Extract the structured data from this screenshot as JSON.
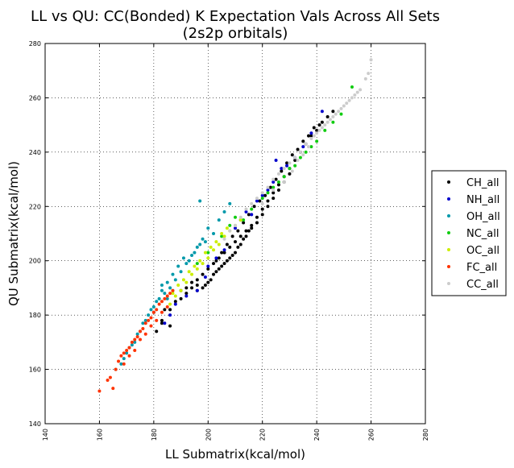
{
  "chart_data": {
    "type": "scatter",
    "title_line1": "LL vs QU: CC(Bonded) K Expectation Vals Across All Sets",
    "title_line2": "(2s2p orbitals)",
    "xlabel": "LL Submatrix(kcal/mol)",
    "ylabel": "QU Submatrix(kcal/mol)",
    "xlim": [
      140,
      280
    ],
    "ylim": [
      140,
      280
    ],
    "xticks": [
      140,
      160,
      180,
      200,
      220,
      240,
      260,
      280
    ],
    "yticks": [
      140,
      160,
      180,
      200,
      220,
      240,
      260,
      280
    ],
    "grid": true,
    "legend_position": "right-outside",
    "series": [
      {
        "name": "CH_all",
        "color": "#000000",
        "points": [
          [
            180,
            181
          ],
          [
            183,
            178
          ],
          [
            186,
            182
          ],
          [
            188,
            185
          ],
          [
            190,
            189
          ],
          [
            192,
            190
          ],
          [
            194,
            192
          ],
          [
            196,
            193
          ],
          [
            198,
            195
          ],
          [
            200,
            197
          ],
          [
            202,
            199
          ],
          [
            204,
            201
          ],
          [
            206,
            203
          ],
          [
            208,
            205
          ],
          [
            210,
            207
          ],
          [
            212,
            209
          ],
          [
            214,
            211
          ],
          [
            216,
            213
          ],
          [
            218,
            216
          ],
          [
            220,
            219
          ],
          [
            222,
            222
          ],
          [
            224,
            225
          ],
          [
            226,
            228
          ],
          [
            228,
            231
          ],
          [
            230,
            234
          ],
          [
            232,
            237
          ],
          [
            234,
            240
          ],
          [
            236,
            243
          ],
          [
            238,
            246
          ],
          [
            240,
            248
          ],
          [
            242,
            251
          ],
          [
            244,
            253
          ],
          [
            246,
            255
          ],
          [
            199,
            191
          ],
          [
            201,
            193
          ],
          [
            203,
            196
          ],
          [
            205,
            198
          ],
          [
            207,
            200
          ],
          [
            209,
            202
          ],
          [
            211,
            205
          ],
          [
            213,
            208
          ],
          [
            215,
            211
          ],
          [
            196,
            189
          ],
          [
            198,
            190
          ],
          [
            200,
            192
          ],
          [
            202,
            195
          ],
          [
            204,
            197
          ],
          [
            206,
            199
          ],
          [
            208,
            201
          ],
          [
            210,
            203
          ],
          [
            212,
            206
          ],
          [
            214,
            209
          ],
          [
            216,
            212
          ],
          [
            218,
            214
          ],
          [
            220,
            217
          ],
          [
            222,
            220
          ],
          [
            224,
            223
          ],
          [
            226,
            226
          ],
          [
            228,
            229
          ],
          [
            230,
            232
          ],
          [
            186,
            176
          ],
          [
            183,
            177
          ],
          [
            181,
            174
          ],
          [
            184,
            182
          ],
          [
            190,
            186
          ],
          [
            192,
            188
          ],
          [
            194,
            190
          ],
          [
            196,
            191
          ],
          [
            203,
            200
          ],
          [
            205,
            203
          ],
          [
            207,
            206
          ],
          [
            209,
            209
          ],
          [
            211,
            211
          ],
          [
            213,
            214
          ],
          [
            215,
            217
          ],
          [
            217,
            220
          ],
          [
            219,
            222
          ],
          [
            221,
            224
          ],
          [
            223,
            227
          ],
          [
            225,
            230
          ],
          [
            227,
            233
          ],
          [
            229,
            236
          ],
          [
            231,
            239
          ],
          [
            233,
            241
          ],
          [
            235,
            244
          ],
          [
            237,
            246
          ],
          [
            239,
            249
          ],
          [
            241,
            250
          ]
        ]
      },
      {
        "name": "NH_all",
        "color": "#0000cc",
        "points": [
          [
            184,
            177
          ],
          [
            186,
            180
          ],
          [
            188,
            184
          ],
          [
            192,
            187
          ],
          [
            196,
            189
          ],
          [
            199,
            194
          ],
          [
            200,
            198
          ],
          [
            203,
            201
          ],
          [
            206,
            204
          ],
          [
            210,
            212
          ],
          [
            212,
            215
          ],
          [
            214,
            218
          ],
          [
            216,
            217
          ],
          [
            218,
            222
          ],
          [
            220,
            224
          ],
          [
            222,
            226
          ],
          [
            224,
            229
          ],
          [
            225,
            237
          ],
          [
            227,
            234
          ],
          [
            229,
            235
          ],
          [
            232,
            238
          ],
          [
            235,
            242
          ],
          [
            238,
            247
          ],
          [
            242,
            255
          ]
        ]
      },
      {
        "name": "OH_all",
        "color": "#0099aa",
        "points": [
          [
            166,
            160
          ],
          [
            168,
            162
          ],
          [
            170,
            166
          ],
          [
            172,
            169
          ],
          [
            174,
            173
          ],
          [
            176,
            177
          ],
          [
            178,
            180
          ],
          [
            180,
            183
          ],
          [
            182,
            186
          ],
          [
            184,
            188
          ],
          [
            186,
            190
          ],
          [
            188,
            193
          ],
          [
            190,
            196
          ],
          [
            192,
            199
          ],
          [
            194,
            202
          ],
          [
            196,
            205
          ],
          [
            198,
            208
          ],
          [
            200,
            212
          ],
          [
            202,
            210
          ],
          [
            204,
            215
          ],
          [
            206,
            218
          ],
          [
            208,
            221
          ],
          [
            177,
            178
          ],
          [
            179,
            182
          ],
          [
            181,
            185
          ],
          [
            183,
            189
          ],
          [
            185,
            192
          ],
          [
            187,
            195
          ],
          [
            189,
            198
          ],
          [
            191,
            201
          ],
          [
            193,
            200
          ],
          [
            195,
            203
          ],
          [
            197,
            206
          ],
          [
            199,
            207
          ],
          [
            175,
            174
          ],
          [
            173,
            170
          ],
          [
            171,
            168
          ],
          [
            169,
            164
          ],
          [
            197,
            222
          ],
          [
            183,
            191
          ],
          [
            185,
            186
          ],
          [
            187,
            189
          ]
        ]
      },
      {
        "name": "NC_all",
        "color": "#11cc11",
        "points": [
          [
            196,
            199
          ],
          [
            200,
            203
          ],
          [
            205,
            209
          ],
          [
            208,
            213
          ],
          [
            210,
            216
          ],
          [
            213,
            215
          ],
          [
            216,
            219
          ],
          [
            220,
            223
          ],
          [
            222,
            225
          ],
          [
            224,
            227
          ],
          [
            226,
            229
          ],
          [
            228,
            231
          ],
          [
            230,
            234
          ],
          [
            232,
            235
          ],
          [
            234,
            238
          ],
          [
            236,
            240
          ],
          [
            238,
            242
          ],
          [
            240,
            244
          ],
          [
            243,
            248
          ],
          [
            246,
            251
          ],
          [
            249,
            254
          ],
          [
            253,
            264
          ]
        ]
      },
      {
        "name": "OC_all",
        "color": "#ccee00",
        "points": [
          [
            186,
            184
          ],
          [
            188,
            187
          ],
          [
            190,
            189
          ],
          [
            192,
            192
          ],
          [
            194,
            195
          ],
          [
            196,
            197
          ],
          [
            198,
            199
          ],
          [
            200,
            201
          ],
          [
            202,
            204
          ],
          [
            204,
            206
          ],
          [
            206,
            209
          ],
          [
            208,
            211
          ],
          [
            210,
            213
          ],
          [
            212,
            215
          ],
          [
            191,
            193
          ],
          [
            193,
            196
          ],
          [
            195,
            198
          ],
          [
            197,
            200
          ],
          [
            199,
            203
          ],
          [
            201,
            205
          ],
          [
            203,
            207
          ],
          [
            205,
            210
          ],
          [
            207,
            212
          ],
          [
            189,
            191
          ],
          [
            187,
            188
          ]
        ]
      },
      {
        "name": "FC_all",
        "color": "#ff3300",
        "points": [
          [
            160,
            152
          ],
          [
            163,
            156
          ],
          [
            164,
            157
          ],
          [
            166,
            160
          ],
          [
            167,
            163
          ],
          [
            168,
            165
          ],
          [
            169,
            166
          ],
          [
            170,
            167
          ],
          [
            171,
            168
          ],
          [
            172,
            170
          ],
          [
            173,
            171
          ],
          [
            174,
            172
          ],
          [
            175,
            174
          ],
          [
            176,
            175
          ],
          [
            177,
            177
          ],
          [
            178,
            178
          ],
          [
            179,
            179
          ],
          [
            180,
            181
          ],
          [
            181,
            182
          ],
          [
            182,
            184
          ],
          [
            183,
            185
          ],
          [
            184,
            186
          ],
          [
            185,
            187
          ],
          [
            186,
            188
          ],
          [
            187,
            189
          ],
          [
            165,
            153
          ],
          [
            169,
            162
          ],
          [
            171,
            165
          ],
          [
            173,
            167
          ],
          [
            175,
            171
          ],
          [
            177,
            173
          ],
          [
            179,
            176
          ],
          [
            181,
            178
          ],
          [
            183,
            181
          ],
          [
            185,
            183
          ]
        ]
      },
      {
        "name": "CC_all",
        "color": "#cccccc",
        "points": [
          [
            206,
            208
          ],
          [
            208,
            211
          ],
          [
            210,
            213
          ],
          [
            212,
            216
          ],
          [
            214,
            219
          ],
          [
            216,
            221
          ],
          [
            218,
            223
          ],
          [
            220,
            225
          ],
          [
            222,
            227
          ],
          [
            224,
            230
          ],
          [
            226,
            232
          ],
          [
            228,
            234
          ],
          [
            230,
            236
          ],
          [
            232,
            238
          ],
          [
            234,
            240
          ],
          [
            236,
            243
          ],
          [
            238,
            245
          ],
          [
            240,
            247
          ],
          [
            242,
            249
          ],
          [
            244,
            251
          ],
          [
            246,
            253
          ],
          [
            248,
            255
          ],
          [
            250,
            257
          ],
          [
            252,
            259
          ],
          [
            254,
            261
          ],
          [
            256,
            263
          ],
          [
            258,
            267
          ],
          [
            259,
            269
          ],
          [
            260,
            274
          ],
          [
            231,
            233
          ],
          [
            233,
            237
          ],
          [
            235,
            239
          ],
          [
            237,
            242
          ],
          [
            239,
            246
          ],
          [
            241,
            248
          ],
          [
            243,
            250
          ],
          [
            245,
            252
          ],
          [
            247,
            254
          ],
          [
            249,
            256
          ],
          [
            251,
            258
          ],
          [
            253,
            260
          ],
          [
            255,
            262
          ],
          [
            220,
            221
          ],
          [
            224,
            226
          ],
          [
            228,
            229
          ]
        ]
      }
    ]
  }
}
